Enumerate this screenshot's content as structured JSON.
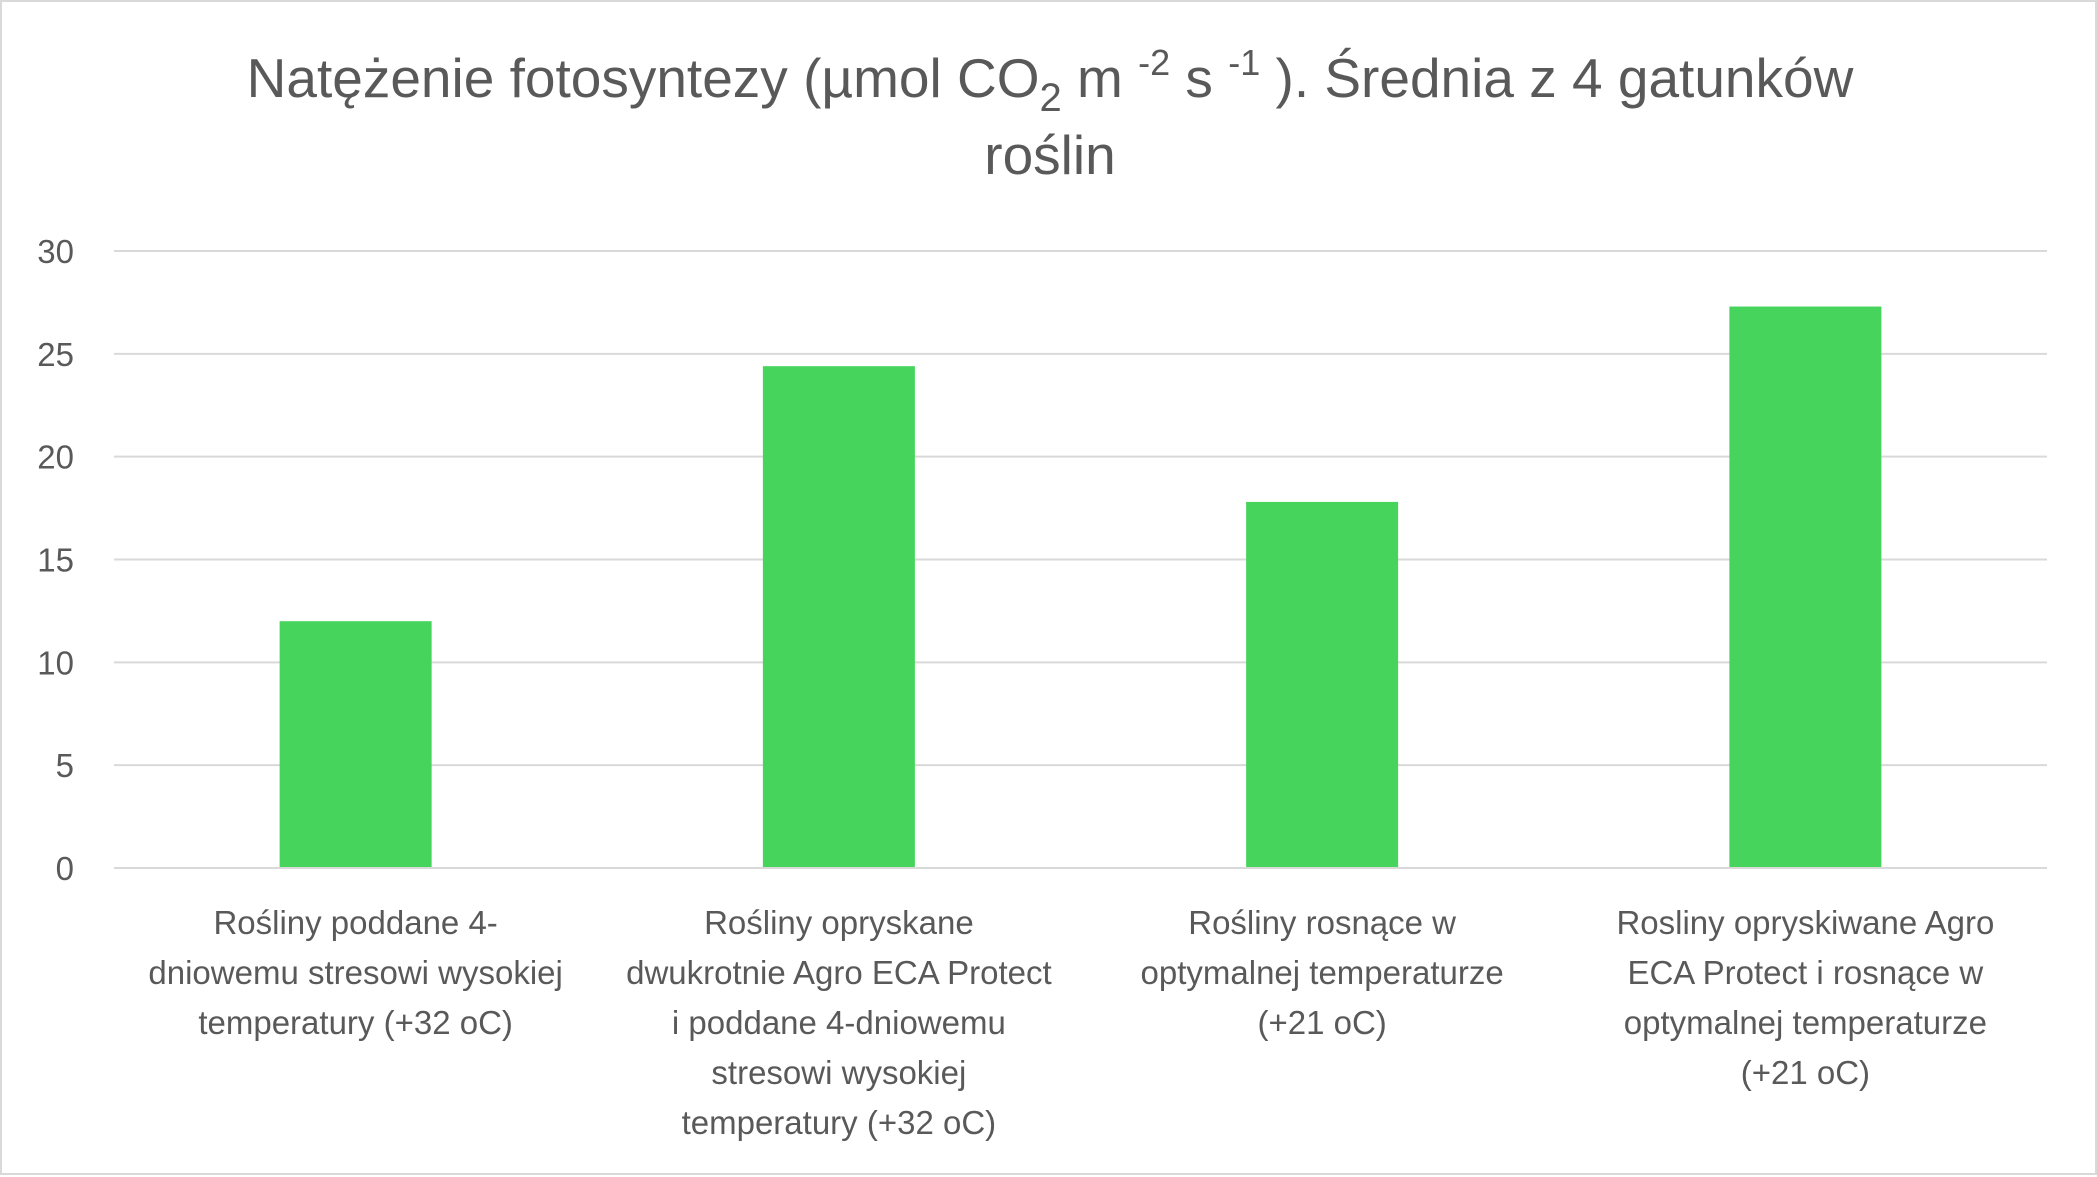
{
  "chart_data": {
    "type": "bar",
    "title": {
      "line1": {
        "before": "Natężenie fotosyntezy (µmol CO",
        "sub": "2",
        "mid1": " m ",
        "sup1": "-2",
        "mid2": " s ",
        "sup2": "-1",
        "after": " ). Średnia  z 4 gatunków"
      },
      "line2": "roślin"
    },
    "categories": [
      [
        "Rośliny poddane 4-",
        "dniowemu stresowi wysokiej",
        "temperatury (+32 oC)"
      ],
      [
        "Rośliny opryskane",
        "dwukrotnie Agro ECA Protect",
        "i poddane 4-dniowemu",
        "stresowi wysokiej",
        "temperatury (+32 oC)"
      ],
      [
        "Rośliny rosnące w",
        "optymalnej temperaturze",
        "(+21 oC)"
      ],
      [
        "Rosliny opryskiwane Agro",
        "ECA Protect  i rosnące w",
        "optymalnej temperaturze",
        "(+21 oC)"
      ]
    ],
    "values": [
      12.0,
      24.4,
      17.8,
      27.3
    ],
    "ylim": [
      0,
      30
    ],
    "yticks": [
      0,
      5,
      10,
      15,
      20,
      25,
      30
    ],
    "grid": true,
    "legend": "none",
    "bar_color": "#47d45c"
  }
}
